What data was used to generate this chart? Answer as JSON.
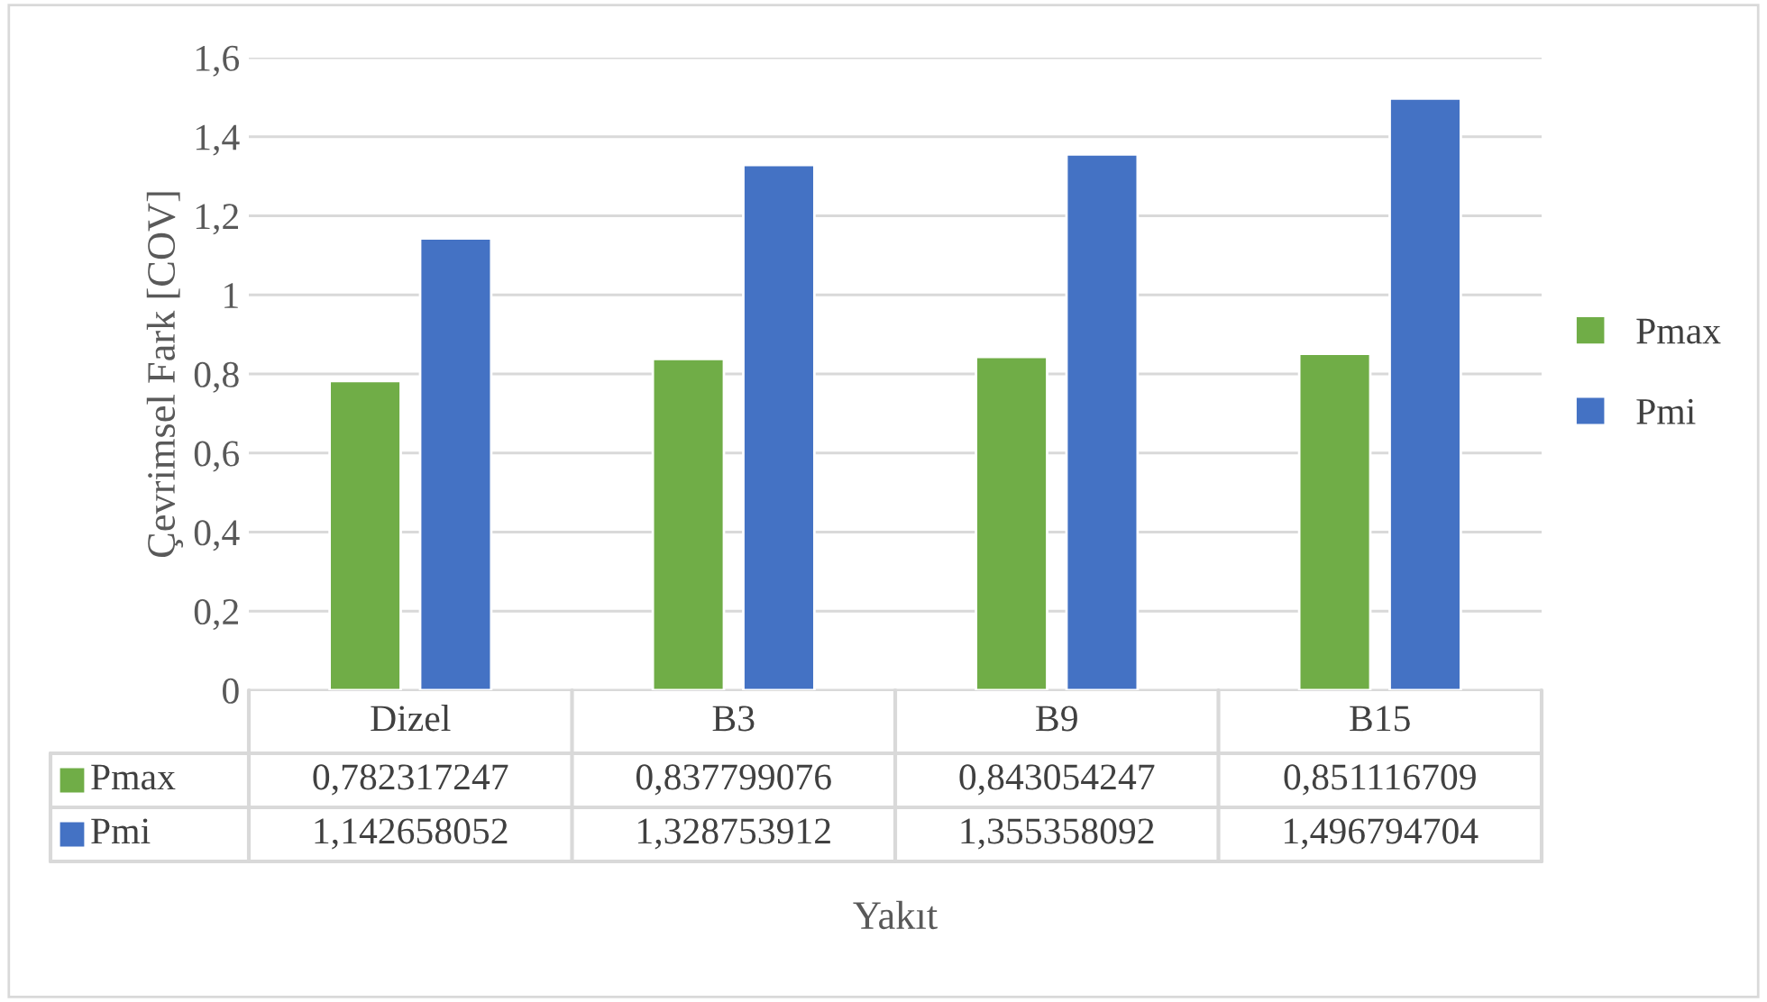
{
  "chart_data": {
    "type": "bar",
    "ylabel": "Çevrimsel Fark [COV]",
    "xlabel": "Yakıt",
    "categories": [
      "Dizel",
      "B3",
      "B9",
      "B15"
    ],
    "series": [
      {
        "name": "Pmax",
        "color": "#70ad47",
        "values": [
          0.782317247,
          0.837799076,
          0.843054247,
          0.851116709
        ],
        "value_labels": [
          "0,782317247",
          "0,837799076",
          "0,843054247",
          "0,851116709"
        ]
      },
      {
        "name": "Pmi",
        "color": "#4472c4",
        "values": [
          1.142658052,
          1.328753912,
          1.355358092,
          1.496794704
        ],
        "value_labels": [
          "1,142658052",
          "1,328753912",
          "1,355358092",
          "1,496794704"
        ]
      }
    ],
    "ylim": [
      0,
      1.6
    ],
    "yticks": [
      0,
      {
        "value": 0.2,
        "label": "0,2"
      },
      {
        "value": 0.4,
        "label": "0,4"
      },
      {
        "value": 0.6,
        "label": "0,6"
      },
      {
        "value": 0.8,
        "label": "0,8"
      },
      1,
      {
        "value": 1.2,
        "label": "1,2"
      },
      {
        "value": 1.4,
        "label": "1,4"
      },
      {
        "value": 1.6,
        "label": "1,6"
      }
    ],
    "grid": "y",
    "legend": "right"
  }
}
